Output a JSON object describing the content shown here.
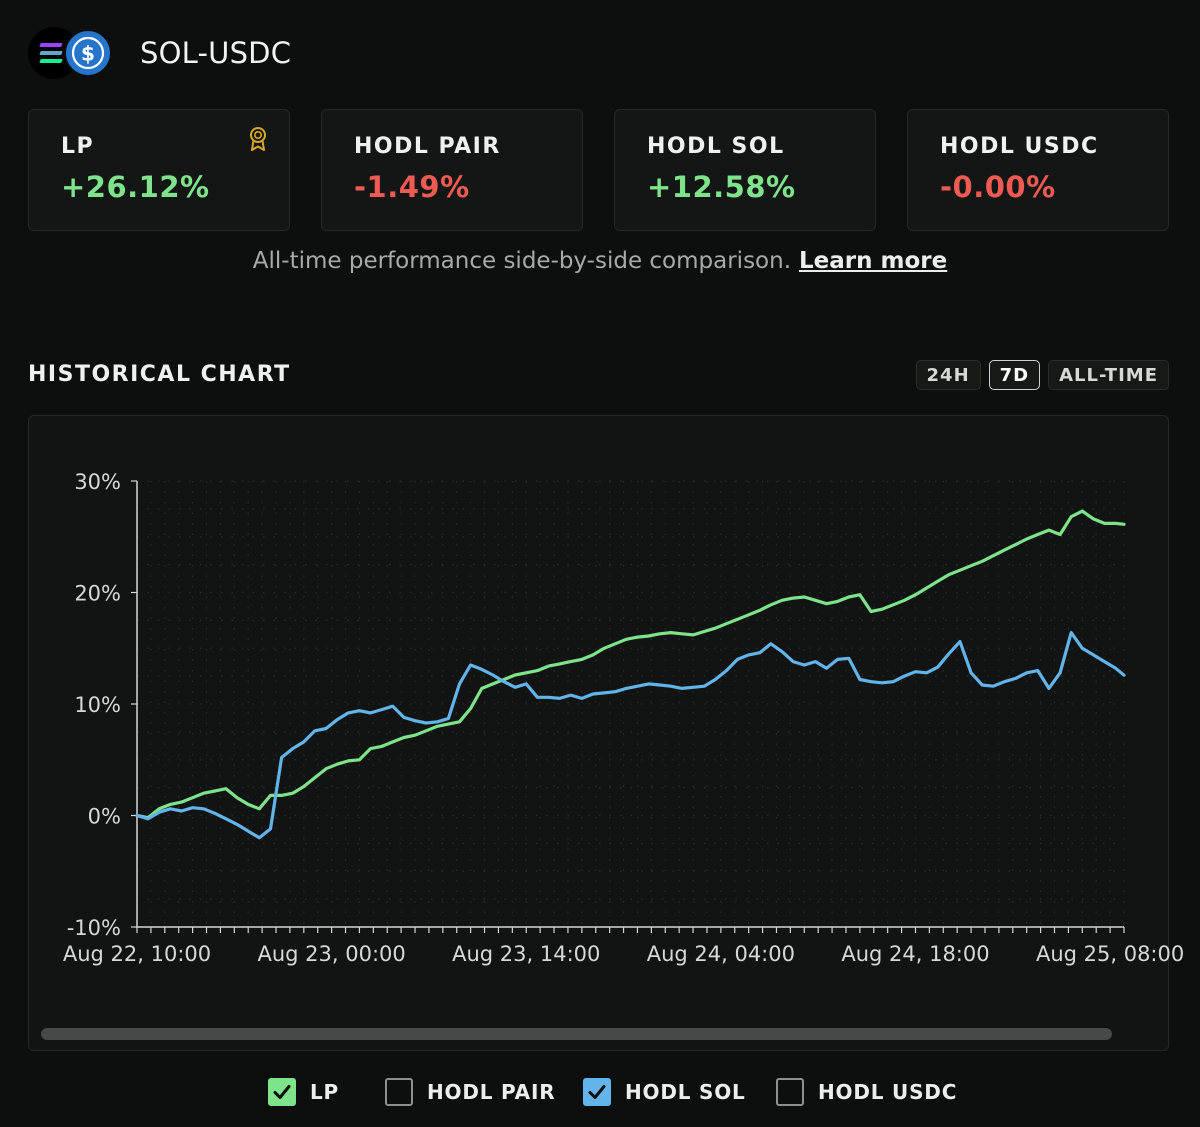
{
  "header": {
    "pair": "SOL-USDC",
    "usdc_symbol": "$",
    "sol_colors": [
      "#9945ff",
      "#5fa8d3",
      "#14f195"
    ]
  },
  "cards": [
    {
      "label": "LP",
      "value": "+26.12%",
      "trend": "positive",
      "icon": "award-badge-icon"
    },
    {
      "label": "HODL PAIR",
      "value": "-1.49%",
      "trend": "negative"
    },
    {
      "label": "HODL SOL",
      "value": "+12.58%",
      "trend": "positive"
    },
    {
      "label": "HODL USDC",
      "value": "-0.00%",
      "trend": "negative"
    }
  ],
  "description": {
    "text": "All-time performance side-by-side comparison.",
    "link": "Learn more"
  },
  "section_title": "HISTORICAL CHART",
  "ranges": [
    {
      "label": "24H",
      "active": false
    },
    {
      "label": "7D",
      "active": true
    },
    {
      "label": "ALL-TIME",
      "active": false
    }
  ],
  "legend": [
    {
      "label": "LP",
      "checked": true,
      "color": "#7ee38a"
    },
    {
      "label": "HODL PAIR",
      "checked": false,
      "color": "#8d908e"
    },
    {
      "label": "HODL SOL",
      "checked": true,
      "color": "#62b4ea"
    },
    {
      "label": "HODL USDC",
      "checked": false,
      "color": "#8d908e"
    }
  ],
  "colors": {
    "positive": "#7ee38a",
    "negative": "#ef5a52",
    "lp_line": "#7ee38a",
    "sol_line": "#62b4ea",
    "badge": "#d9a826"
  },
  "chart_data": {
    "type": "line",
    "x_unit": "hours",
    "xlim": [
      0,
      71
    ],
    "ylim": [
      -10,
      30
    ],
    "y_ticks": [
      30,
      20,
      10,
      0,
      -10
    ],
    "y_tick_labels": [
      "30%",
      "20%",
      "10%",
      "0%",
      "-10%"
    ],
    "x_ticks": [
      0,
      14,
      28,
      42,
      56,
      70
    ],
    "x_tick_labels": [
      "Aug 22, 10:00",
      "Aug 23, 00:00",
      "Aug 23, 14:00",
      "Aug 24, 04:00",
      "Aug 24, 18:00",
      "Aug 25, 08:00"
    ],
    "grid": true,
    "x": [
      0,
      0.8,
      1.6,
      2.4,
      3.2,
      4.0,
      4.8,
      5.6,
      6.4,
      7.2,
      8.0,
      8.8,
      9.6,
      10.4,
      11.2,
      12.0,
      12.8,
      13.6,
      14.4,
      15.2,
      16.0,
      16.8,
      17.6,
      18.4,
      19.2,
      20.0,
      20.8,
      21.6,
      22.4,
      23.2,
      24.0,
      24.8,
      25.6,
      26.4,
      27.2,
      28.0,
      28.8,
      29.6,
      30.4,
      31.2,
      32.0,
      32.8,
      33.6,
      34.4,
      35.2,
      36.0,
      36.8,
      37.6,
      38.4,
      39.2,
      40.0,
      40.8,
      41.6,
      42.4,
      43.2,
      44.0,
      44.8,
      45.6,
      46.4,
      47.2,
      48.0,
      48.8,
      49.6,
      50.4,
      51.2,
      52.0,
      52.8,
      53.6,
      54.4,
      55.2,
      56.0,
      56.8,
      57.6,
      58.4,
      59.2,
      60.0,
      60.8,
      61.6,
      62.4,
      63.2,
      64.0,
      64.8,
      65.6,
      66.4,
      67.2,
      68.0,
      68.8,
      69.6,
      70.4,
      71.0
    ],
    "series": [
      {
        "name": "LP",
        "values": [
          0.0,
          -0.2,
          0.6,
          1.0,
          1.2,
          1.6,
          2.0,
          2.2,
          2.4,
          1.6,
          1.0,
          0.6,
          1.8,
          1.8,
          2.0,
          2.6,
          3.4,
          4.2,
          4.6,
          4.9,
          5.0,
          6.0,
          6.2,
          6.6,
          7.0,
          7.2,
          7.6,
          8.0,
          8.2,
          8.4,
          9.6,
          11.4,
          11.8,
          12.2,
          12.6,
          12.8,
          13.0,
          13.4,
          13.6,
          13.8,
          14.0,
          14.4,
          15.0,
          15.4,
          15.8,
          16.0,
          16.1,
          16.3,
          16.4,
          16.3,
          16.2,
          16.5,
          16.8,
          17.2,
          17.6,
          18.0,
          18.4,
          18.9,
          19.3,
          19.5,
          19.6,
          19.3,
          19.0,
          19.2,
          19.6,
          19.8,
          18.3,
          18.5,
          18.9,
          19.3,
          19.8,
          20.4,
          21.0,
          21.6,
          22.0,
          22.4,
          22.8,
          23.3,
          23.8,
          24.3,
          24.8,
          25.2,
          25.6,
          25.2,
          26.8,
          27.3,
          26.6,
          26.2,
          26.2,
          26.12
        ]
      },
      {
        "name": "HODL SOL",
        "values": [
          0.0,
          -0.3,
          0.3,
          0.6,
          0.4,
          0.7,
          0.6,
          0.2,
          -0.3,
          -0.8,
          -1.4,
          -2.0,
          -1.2,
          5.2,
          6.0,
          6.6,
          7.6,
          7.8,
          8.6,
          9.2,
          9.4,
          9.2,
          9.5,
          9.8,
          8.8,
          8.5,
          8.3,
          8.4,
          8.7,
          11.8,
          13.5,
          13.1,
          12.6,
          12.0,
          11.5,
          11.8,
          10.6,
          10.6,
          10.5,
          10.8,
          10.5,
          10.9,
          11.0,
          11.1,
          11.4,
          11.6,
          11.8,
          11.7,
          11.6,
          11.4,
          11.5,
          11.6,
          12.2,
          13.0,
          14.0,
          14.4,
          14.6,
          15.4,
          14.7,
          13.8,
          13.5,
          13.8,
          13.2,
          14.0,
          14.1,
          12.2,
          12.0,
          11.9,
          12.0,
          12.5,
          12.9,
          12.8,
          13.3,
          14.5,
          15.6,
          12.8,
          11.7,
          11.6,
          12.0,
          12.3,
          12.8,
          13.0,
          11.4,
          12.8,
          16.4,
          15.0,
          14.4,
          13.8,
          13.2,
          12.58
        ]
      }
    ]
  }
}
